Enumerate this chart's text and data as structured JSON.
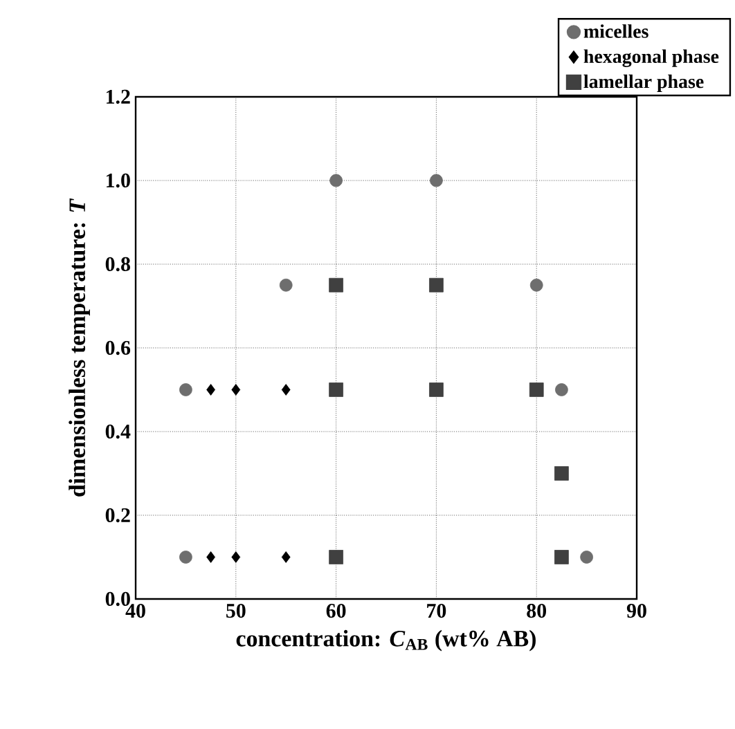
{
  "chart_data": {
    "type": "scatter",
    "xlabel": "concentration: *C*$_{AB}$ (wt% AB)",
    "ylabel": "dimensionless temperature: *T*",
    "xlim": [
      40,
      90
    ],
    "ylim": [
      0,
      1.2
    ],
    "xticks": [
      40,
      50,
      60,
      70,
      80,
      90
    ],
    "yticks": [
      {
        "value": 0,
        "label": "0.0"
      },
      {
        "value": 0.2,
        "label": "0.2"
      },
      {
        "value": 0.4,
        "label": "0.4"
      },
      {
        "value": 0.6,
        "label": "0.6"
      },
      {
        "value": 0.8,
        "label": "0.8"
      },
      {
        "value": 1.0,
        "label": "1.0"
      },
      {
        "value": 1.2,
        "label": "1.2"
      }
    ],
    "grid": true,
    "legend": "top right",
    "series": [
      {
        "name": "micelles",
        "color": "#6e6e6e",
        "marker": "circle",
        "x": [
          45,
          82.5,
          45,
          85,
          55,
          80,
          60,
          70
        ],
        "values": [
          0.5,
          0.5,
          0.1,
          0.1,
          0.75,
          0.75,
          1.0,
          1.0
        ]
      },
      {
        "name": "hexagonal phase",
        "color": "#000000",
        "marker": "diamond",
        "x": [
          47.5,
          50,
          55,
          47.5,
          50,
          55
        ],
        "values": [
          0.5,
          0.5,
          0.5,
          0.1,
          0.1,
          0.1
        ]
      },
      {
        "name": "lamellar phase",
        "color": "#404040",
        "marker": "square",
        "x": [
          60,
          70,
          60,
          70,
          80,
          82.5,
          60,
          82.5
        ],
        "values": [
          0.75,
          0.75,
          0.5,
          0.5,
          0.5,
          0.3,
          0.1,
          0.1
        ]
      }
    ]
  }
}
